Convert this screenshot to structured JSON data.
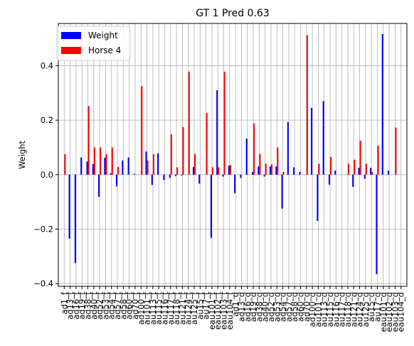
{
  "chart_data": {
    "type": "bar",
    "title": "GT 1 Pred 0.63",
    "xlabel": "",
    "ylabel": "Weight",
    "ylim": [
      -0.41,
      0.555
    ],
    "yticks": [
      -0.4,
      -0.2,
      0.0,
      0.2,
      0.4
    ],
    "ytick_labels": [
      "−0.4",
      "−0.2",
      "0.0",
      "0.2",
      "0.4"
    ],
    "grid": true,
    "legend_position": "top-left",
    "categories": [
      "ad1_f",
      "ad13_f",
      "ad16_f",
      "ad19_f",
      "ad38_f",
      "ad40_f",
      "ad52_f",
      "ad53_f",
      "ad54_f",
      "ad57_f",
      "ad58_f",
      "ad60_f",
      "ad70_f",
      "ad100_f",
      "au101_f",
      "au113_f",
      "au115_f",
      "au116_f",
      "au117_f",
      "au118_f",
      "au121_f",
      "au124_f",
      "au125_f",
      "au15_f",
      "au17_f",
      "eau101_f",
      "eau102_f",
      "eau103_f",
      "eau104_f",
      "ad1_d",
      "ad13_d",
      "ad16_d",
      "ad19_d",
      "ad38_d",
      "ad40_d",
      "ad52_d",
      "ad53_d",
      "ad54_d",
      "ad57_d",
      "ad58_d",
      "ad60_d",
      "ad70_d",
      "ad100_d",
      "au101_d",
      "au113_d",
      "au115_d",
      "au116_d",
      "au117_d",
      "au118_d",
      "au121_d",
      "au124_d",
      "au125_d",
      "au15_d",
      "au17_d",
      "eau101_d",
      "eau102_d",
      "eau103_d",
      "eau104_d"
    ],
    "tick_labels": [
      "ad1_f",
      "ad13_f",
      "ad16_f",
      "ad19_f",
      "ad38_f",
      "ad40_f",
      "ad52_f",
      "ad53_f",
      "ad54_f",
      "ad57_f",
      "ad58_f",
      "ad60_f",
      "ad70_f",
      "ad100_f",
      "au101_f",
      "au113_f",
      "au115_f",
      "au116_f",
      "au117_f",
      "au118_f",
      "au121_f",
      "au124_f",
      "au125_f",
      "au15_f",
      "au17_f",
      "eau101_f",
      "eau102_f",
      "eau103_f",
      "eau104_f",
      "ad1_d",
      "ad13_d",
      "ad16_d",
      "ad19_d",
      "ad38_d",
      "ad40_d",
      "ad52_d",
      "ad53_d",
      "ad54_d",
      "ad57_d",
      "ad58_d",
      "ad60_d",
      "ad70_d",
      "ad100_d",
      "au101_d",
      "au113_d",
      "au115_d",
      "au116_d",
      "au117_d",
      "au118_d",
      "au121_d",
      "au124_d",
      "au125_d",
      "au15_d",
      "au17_d",
      "eau101_d",
      "eau102_d",
      "eau103_d",
      "eau104_d"
    ],
    "series": [
      {
        "name": "Weight",
        "color": "#0000ff",
        "values": [
          0.0,
          -0.235,
          -0.325,
          0.063,
          0.048,
          0.039,
          -0.082,
          0.062,
          0.005,
          -0.043,
          0.052,
          0.063,
          0.003,
          0.0,
          0.085,
          -0.038,
          0.078,
          -0.02,
          -0.012,
          -0.005,
          -0.003,
          0.0,
          0.028,
          -0.033,
          0.0,
          -0.232,
          0.31,
          -0.007,
          0.033,
          -0.068,
          -0.012,
          0.132,
          0.01,
          0.03,
          -0.007,
          0.03,
          0.03,
          -0.125,
          0.193,
          0.027,
          0.01,
          0.0,
          0.245,
          -0.17,
          0.27,
          -0.037,
          0.015,
          0.0,
          0.0,
          -0.045,
          0.025,
          -0.015,
          0.025,
          -0.365,
          0.516,
          0.015,
          0.0,
          0.0
        ]
      },
      {
        "name": "Horse 4",
        "color": "#ff0000",
        "values": [
          0.075,
          0.0,
          0.0,
          0.0,
          0.252,
          0.1,
          0.1,
          0.075,
          0.1,
          0.028,
          0.0,
          0.0,
          0.0,
          0.325,
          0.052,
          0.075,
          0.0,
          0.0,
          0.148,
          0.027,
          0.175,
          0.378,
          0.076,
          0.0,
          0.226,
          0.027,
          0.027,
          0.378,
          0.035,
          0.0,
          0.0,
          0.0,
          0.188,
          0.076,
          0.04,
          0.038,
          0.1,
          0.01,
          0.0,
          0.0,
          0.0,
          0.512,
          0.0,
          0.04,
          0.0,
          0.065,
          0.0,
          0.0,
          0.04,
          0.055,
          0.125,
          0.04,
          0.01,
          0.106,
          0.0,
          0.0,
          0.173,
          0.0
        ]
      }
    ]
  }
}
